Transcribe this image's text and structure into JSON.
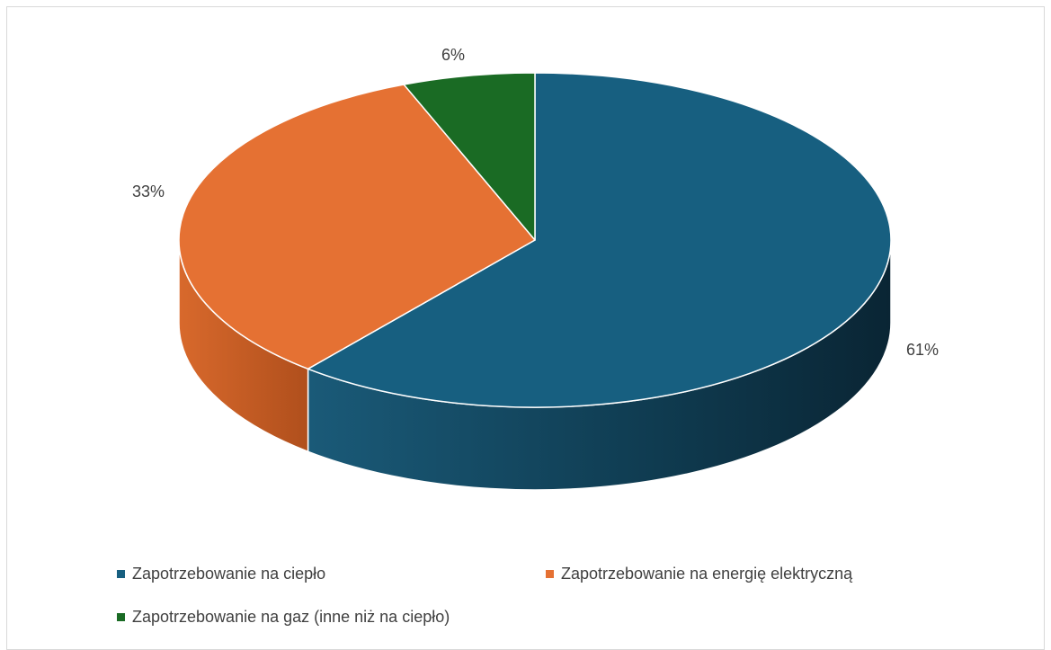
{
  "chart_data": {
    "type": "pie",
    "style": "3d",
    "categories": [
      "Zapotrzebowanie na ciepło",
      "Zapotrzebowanie na energię elektryczną",
      "Zapotrzebowanie na gaz (inne niż na ciepło)"
    ],
    "values": [
      61,
      33,
      6
    ],
    "value_labels": [
      "61%",
      "33%",
      "6%"
    ],
    "colors": [
      "#175f80",
      "#e57133",
      "#1a6b24"
    ],
    "side_colors": [
      "#0e3d52",
      "#b8551f",
      "#124d1a"
    ],
    "title": "",
    "legend_position": "bottom"
  }
}
